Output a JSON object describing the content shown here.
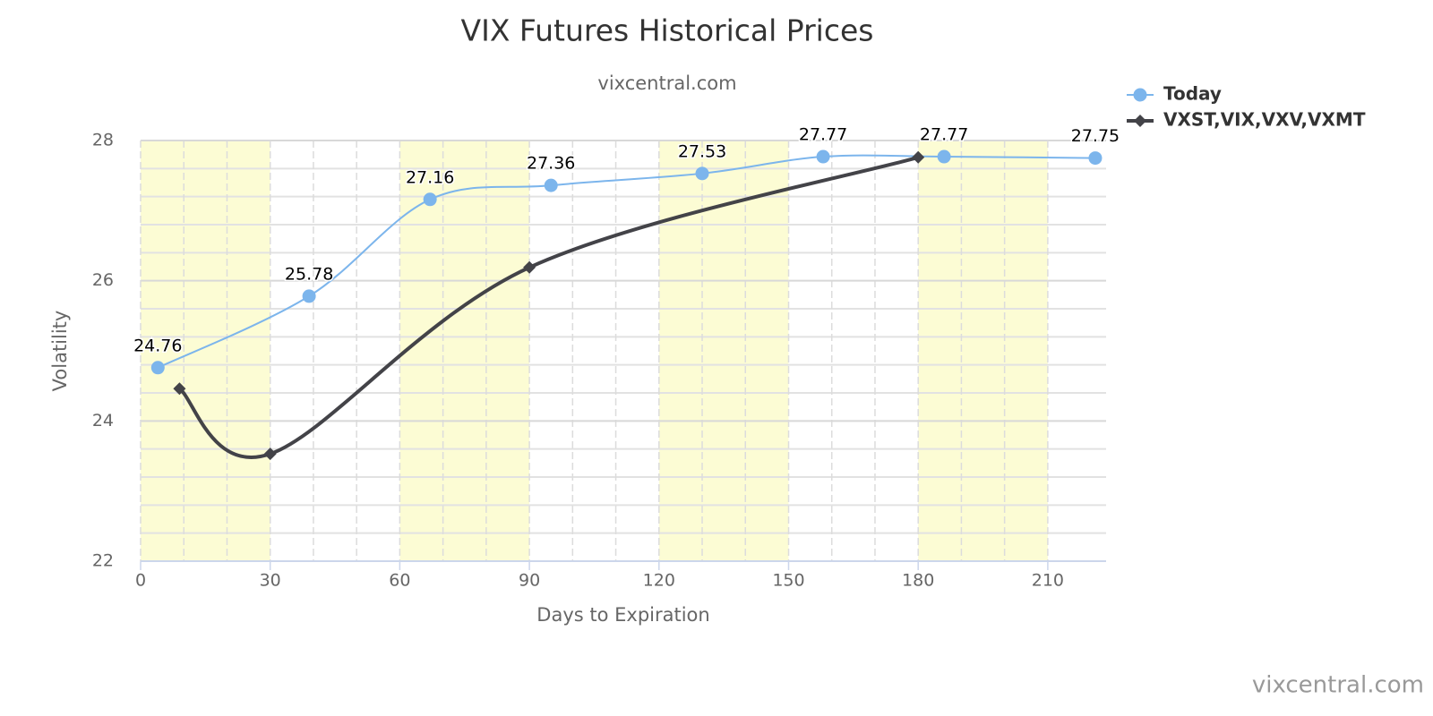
{
  "chart_data": {
    "type": "line",
    "title": "VIX Futures Historical Prices",
    "subtitle": "vixcentral.com",
    "credits": "vixcentral.com",
    "xlabel": "Days to Expiration",
    "ylabel": "Volatility",
    "series": [
      {
        "name": "Today",
        "color": "#7cb5ec",
        "marker": "circle",
        "data_labels": true,
        "x": [
          4,
          39,
          67,
          95,
          130,
          158,
          186,
          221
        ],
        "values": [
          24.76,
          25.78,
          27.16,
          27.36,
          27.53,
          27.77,
          27.77,
          27.75
        ]
      },
      {
        "name": "VXST,VIX,VXV,VXMT",
        "color": "#434348",
        "marker": "diamond",
        "data_labels": false,
        "x": [
          9,
          30,
          90,
          180
        ],
        "values": [
          24.46,
          23.53,
          26.19,
          27.76
        ]
      }
    ],
    "xlim": [
      0,
      223.5
    ],
    "xticks": [
      0,
      30,
      60,
      90,
      120,
      150,
      180,
      210
    ],
    "ylim": [
      22,
      28
    ],
    "yticks": [
      22,
      24,
      26,
      28
    ],
    "grid": true,
    "plot_band_color": "#fcfcd4",
    "legend": "top-right"
  }
}
